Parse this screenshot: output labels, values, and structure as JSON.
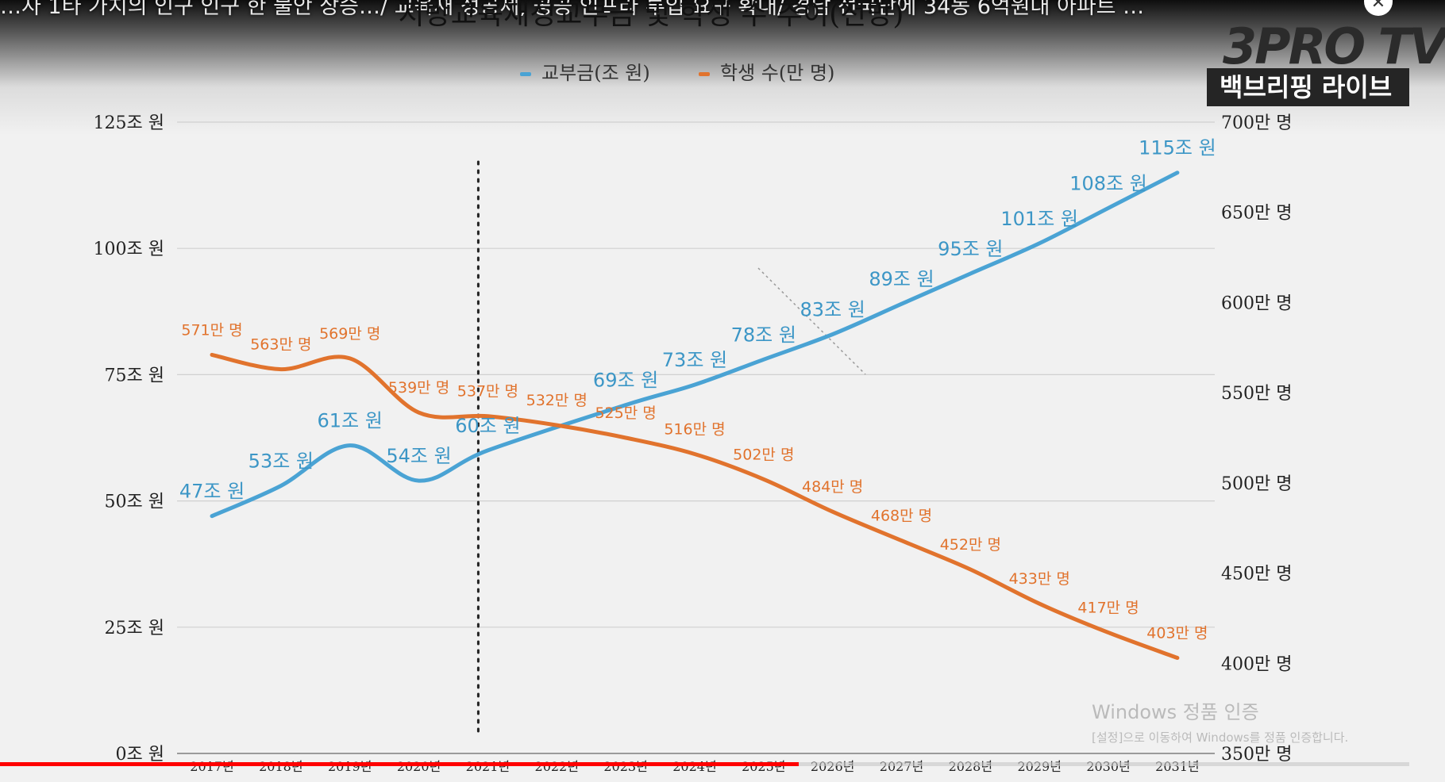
{
  "video": {
    "title_overlay": "…자 1타 가치의 인구 인구 한 불안 상승…/ 교육재 정공제, 공공 인프라 투입 요구 확대/ 경남 전국단에 34동 6억원대 아파트 …",
    "logo_main": "3PRO TV",
    "logo_sub": "백브리핑 라이브",
    "progress_fraction": 0.567
  },
  "watermark": {
    "title": "Windows 정품 인증",
    "subtitle": "[설정]으로 이동하여 Windows를 정품 인증합니다."
  },
  "colors": {
    "grant": "#4aa3d4",
    "students": "#e1732d"
  },
  "chart_data": {
    "type": "line",
    "title": "지방교육재정교부금 및 학생 수 추이(전망)",
    "categories": [
      "2017년",
      "2018년",
      "2019년",
      "2020년",
      "2021년",
      "2022년",
      "2023년",
      "2024년",
      "2025년",
      "2026년",
      "2027년",
      "2028년",
      "2029년",
      "2030년",
      "2031년"
    ],
    "series": [
      {
        "name": "교부금(조 원)",
        "axis": "left",
        "values": [
          47,
          53,
          61,
          54,
          60,
          null,
          69,
          73,
          78,
          83,
          89,
          95,
          101,
          108,
          115
        ],
        "labels": [
          "47조 원",
          "53조 원",
          "61조 원",
          "54조 원",
          "60조 원",
          "",
          "69조 원",
          "73조 원",
          "78조 원",
          "83조 원",
          "89조 원",
          "95조 원",
          "101조 원",
          "108조 원",
          "115조 원"
        ]
      },
      {
        "name": "학생 수(만 명)",
        "axis": "right",
        "values": [
          571,
          563,
          569,
          539,
          537,
          532,
          525,
          516,
          502,
          484,
          468,
          452,
          433,
          417,
          403
        ],
        "labels": [
          "571만 명",
          "563만 명",
          "569만 명",
          "539만 명",
          "537만 명",
          "532만 명",
          "525만 명",
          "516만 명",
          "502만 명",
          "484만 명",
          "468만 명",
          "452만 명",
          "433만 명",
          "417만 명",
          "403만 명"
        ]
      }
    ],
    "left_axis": {
      "range": [
        0,
        125
      ],
      "ticks": [
        "0조 원",
        "25조 원",
        "50조 원",
        "75조 원",
        "100조 원",
        "125조 원"
      ]
    },
    "right_axis": {
      "range": [
        350,
        700
      ],
      "ticks": [
        "350만 명",
        "400만 명",
        "450만 명",
        "500만 명",
        "550만 명",
        "600만 명",
        "650만 명",
        "700만 명"
      ]
    },
    "legend_placement": "top-center",
    "grid": true,
    "divider_after": "2021년"
  }
}
